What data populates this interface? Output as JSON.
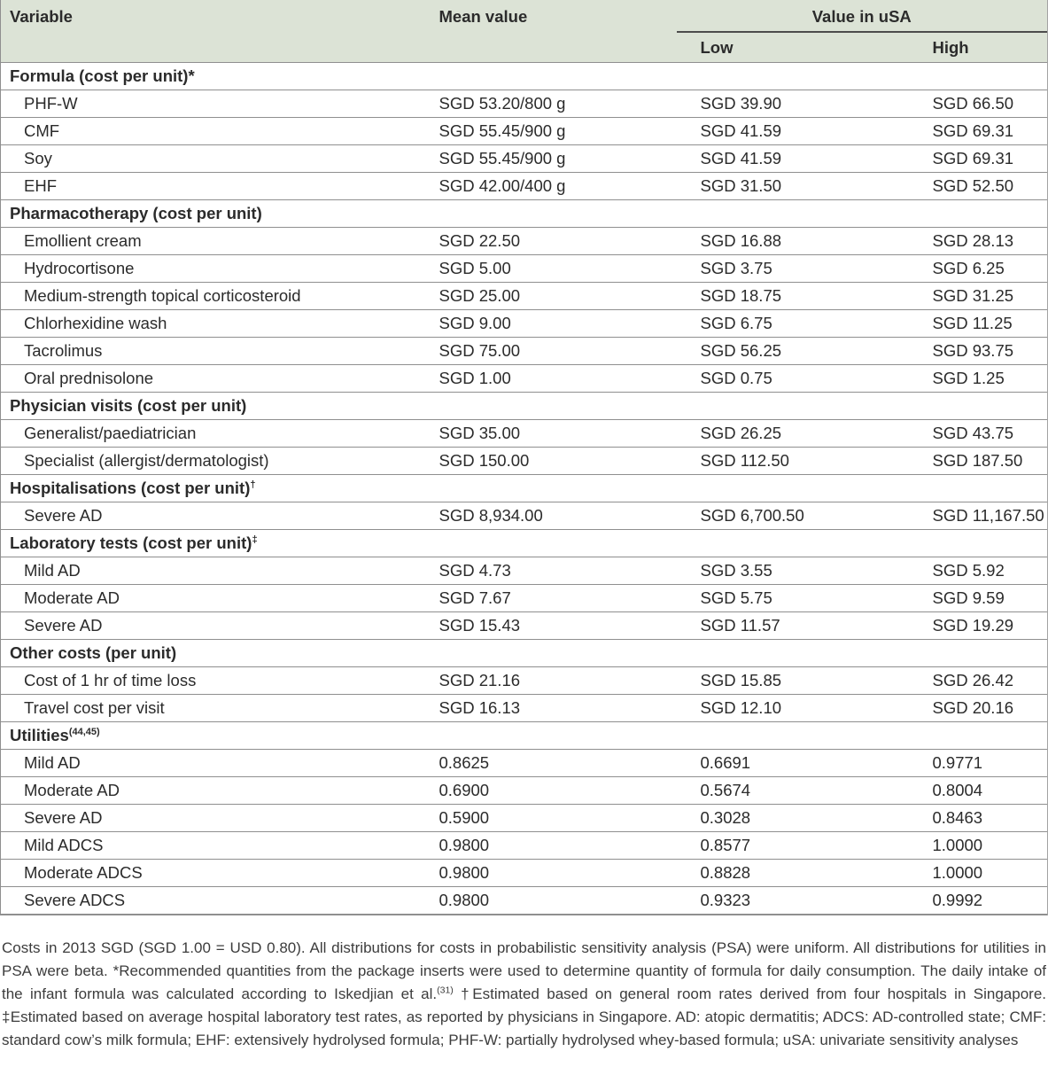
{
  "table": {
    "header": {
      "variable": "Variable",
      "mean_value": "Mean value",
      "value_in_usa": "Value in uSA",
      "low": "Low",
      "high": "High"
    },
    "colors": {
      "header_background": "#dce3d6",
      "row_border": "#8f8f8f",
      "usa_underline": "#4c4c4c",
      "text": "#2b2b2b"
    },
    "sections": [
      {
        "title": "Formula (cost per unit)*",
        "sup": "",
        "rows": [
          {
            "variable": "PHF-W",
            "mean": "SGD 53.20/800 g",
            "low": "SGD 39.90",
            "high": "SGD 66.50"
          },
          {
            "variable": "CMF",
            "mean": "SGD 55.45/900 g",
            "low": "SGD 41.59",
            "high": "SGD 69.31"
          },
          {
            "variable": "Soy",
            "mean": "SGD 55.45/900 g",
            "low": "SGD 41.59",
            "high": "SGD 69.31"
          },
          {
            "variable": "EHF",
            "mean": "SGD 42.00/400 g",
            "low": "SGD 31.50",
            "high": "SGD 52.50"
          }
        ]
      },
      {
        "title": "Pharmacotherapy (cost per unit)",
        "sup": "",
        "rows": [
          {
            "variable": "Emollient cream",
            "mean": "SGD 22.50",
            "low": "SGD 16.88",
            "high": "SGD 28.13"
          },
          {
            "variable": "Hydrocortisone",
            "mean": "SGD 5.00",
            "low": "SGD 3.75",
            "high": "SGD 6.25"
          },
          {
            "variable": "Medium-strength topical corticosteroid",
            "mean": "SGD 25.00",
            "low": "SGD 18.75",
            "high": "SGD 31.25"
          },
          {
            "variable": "Chlorhexidine wash",
            "mean": "SGD 9.00",
            "low": "SGD 6.75",
            "high": "SGD 11.25"
          },
          {
            "variable": "Tacrolimus",
            "mean": "SGD 75.00",
            "low": "SGD 56.25",
            "high": "SGD 93.75"
          },
          {
            "variable": "Oral prednisolone",
            "mean": "SGD 1.00",
            "low": "SGD 0.75",
            "high": "SGD 1.25"
          }
        ]
      },
      {
        "title": "Physician visits (cost per unit)",
        "sup": "",
        "rows": [
          {
            "variable": "Generalist/paediatrician",
            "mean": "SGD 35.00",
            "low": "SGD 26.25",
            "high": "SGD 43.75"
          },
          {
            "variable": "Specialist (allergist/dermatologist)",
            "mean": "SGD 150.00",
            "low": "SGD 112.50",
            "high": "SGD 187.50"
          }
        ]
      },
      {
        "title": "Hospitalisations (cost per unit)",
        "sup": "†",
        "rows": [
          {
            "variable": "Severe AD",
            "mean": "SGD 8,934.00",
            "low": "SGD 6,700.50",
            "high": "SGD 11,167.50"
          }
        ]
      },
      {
        "title": "Laboratory tests (cost per unit)",
        "sup": "‡",
        "rows": [
          {
            "variable": "Mild AD",
            "mean": "SGD 4.73",
            "low": "SGD 3.55",
            "high": "SGD 5.92"
          },
          {
            "variable": "Moderate AD",
            "mean": "SGD 7.67",
            "low": "SGD 5.75",
            "high": "SGD 9.59"
          },
          {
            "variable": "Severe AD",
            "mean": "SGD 15.43",
            "low": "SGD 11.57",
            "high": "SGD 19.29"
          }
        ]
      },
      {
        "title": "Other costs (per unit)",
        "sup": "",
        "rows": [
          {
            "variable": "Cost of 1 hr of time loss",
            "mean": "SGD 21.16",
            "low": "SGD 15.85",
            "high": "SGD 26.42"
          },
          {
            "variable": "Travel cost per visit",
            "mean": "SGD 16.13",
            "low": "SGD 12.10",
            "high": "SGD 20.16"
          }
        ]
      },
      {
        "title": "Utilities",
        "sup": "(44,45)",
        "rows": [
          {
            "variable": "Mild AD",
            "mean": "0.8625",
            "low": "0.6691",
            "high": "0.9771"
          },
          {
            "variable": "Moderate AD",
            "mean": "0.6900",
            "low": "0.5674",
            "high": "0.8004"
          },
          {
            "variable": "Severe AD",
            "mean": "0.5900",
            "low": "0.3028",
            "high": "0.8463"
          },
          {
            "variable": "Mild ADCS",
            "mean": "0.9800",
            "low": "0.8577",
            "high": "1.0000"
          },
          {
            "variable": "Moderate ADCS",
            "mean": "0.9800",
            "low": "0.8828",
            "high": "1.0000"
          },
          {
            "variable": "Severe ADCS",
            "mean": "0.9800",
            "low": "0.9323",
            "high": "0.9992"
          }
        ]
      }
    ]
  },
  "footnote": {
    "part1": "Costs in 2013 SGD (SGD 1.00 = USD 0.80). All distributions for costs in probabilistic sensitivity analysis (PSA) were uniform. All distributions for utilities in PSA were beta. *Recommended quantities from the package inserts were used to determine quantity of formula for daily consumption. The daily intake of the infant formula was calculated according to Iskedjian et al.",
    "sup": "(31)",
    "part2": " †Estimated based on general room rates derived from four hospitals in Singapore. ‡Estimated based on average hospital laboratory test rates, as reported by physicians in Singapore. AD: atopic dermatitis; ADCS: AD-controlled state; CMF: standard cow’s milk formula; EHF: extensively hydrolysed formula; PHF-W: partially hydrolysed whey-based formula; uSA: univariate sensitivity analyses"
  }
}
